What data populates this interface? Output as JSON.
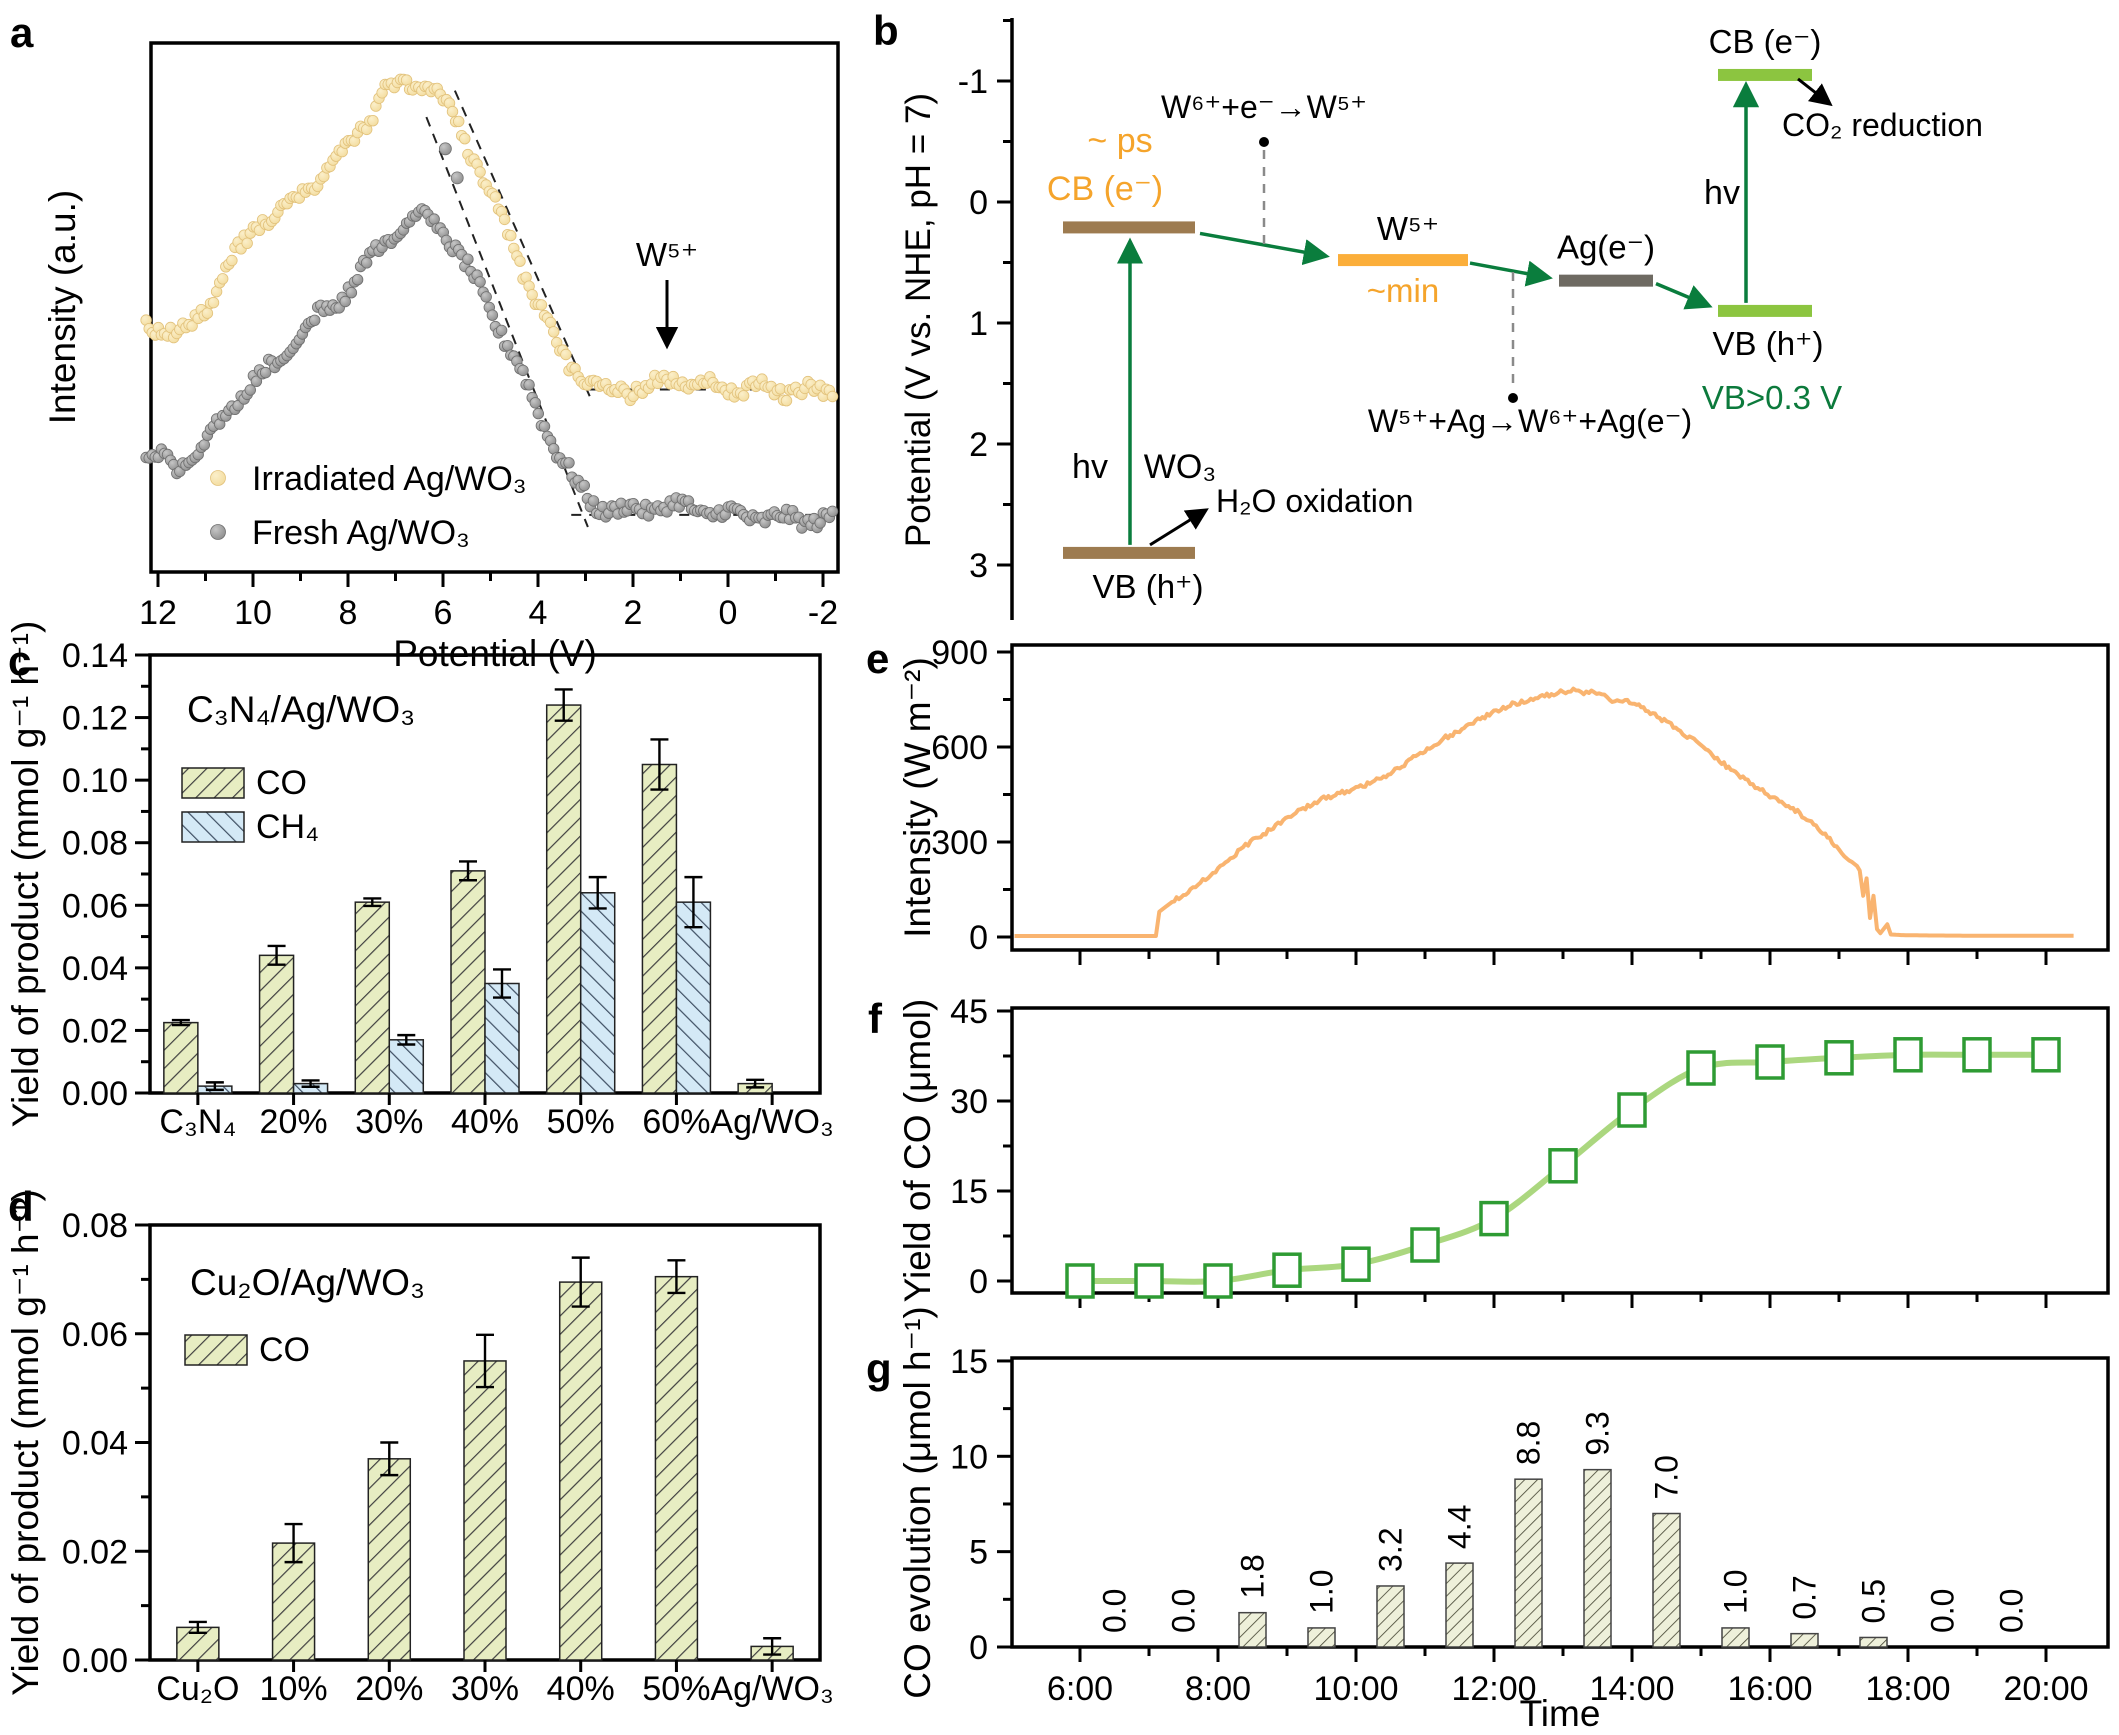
{
  "panels": {
    "a": {
      "letter": "a"
    },
    "b": {
      "letter": "b"
    },
    "c": {
      "letter": "c"
    },
    "d": {
      "letter": "d"
    },
    "e": {
      "letter": "e"
    },
    "f": {
      "letter": "f"
    },
    "g": {
      "letter": "g"
    }
  },
  "colors": {
    "yellow_dot": "#f3dc9e",
    "yellow_dot_hi": "#fbefca",
    "yellow_edge": "#e2c27c",
    "gray_dot": "#8d8d8d",
    "gray_dot_hi": "#c6c6c6",
    "gray_edge": "#6f6f6f",
    "orange_text": "#F5A42B",
    "brown_bar": "#9d7b50",
    "w5_bar": "#FBAE3A",
    "ag_bar": "#6e6a62",
    "green_bar": "#8CC540",
    "green_arrow": "#0a7d3d",
    "green_text": "#0c7a3c",
    "dash_gray": "#8a8a8a",
    "co_fill": "#e7edc2",
    "ch4_fill": "#d4e9f6",
    "hatch": "#3f3f3f",
    "ch4_hatch": "#3f4f63",
    "e_line": "#F9B470",
    "f_line": "#ABD77F",
    "f_marker": "#2E9B33",
    "g_fill": "#eef0da",
    "g_hatch": "#4a4a38"
  },
  "chart_data": [
    {
      "id": "a",
      "type": "scatter",
      "label": "a",
      "xlabel": "Potential (V)",
      "ylabel": "Intensity (a.u.)",
      "x_ticks": [
        12,
        10,
        8,
        6,
        4,
        2,
        0,
        -2
      ],
      "x_range": [
        12.3,
        -2.25
      ],
      "annotation": "W⁵⁺",
      "legend": [
        {
          "label": "Irradiated Ag/WO₃",
          "series": "irradiated"
        },
        {
          "label": "Fresh Ag/WO₃",
          "series": "fresh"
        }
      ],
      "series": [
        {
          "name": "fresh",
          "anchors": [
            [
              12.3,
              0.225
            ],
            [
              12,
              0.22
            ],
            [
              11.7,
              0.2
            ],
            [
              11.4,
              0.205
            ],
            [
              11.1,
              0.235
            ],
            [
              10.7,
              0.28
            ],
            [
              10.3,
              0.33
            ],
            [
              9.9,
              0.365
            ],
            [
              9.5,
              0.4
            ],
            [
              9.1,
              0.44
            ],
            [
              8.7,
              0.475
            ],
            [
              8.3,
              0.51
            ],
            [
              7.9,
              0.545
            ],
            [
              7.5,
              0.6
            ],
            [
              7.1,
              0.64
            ],
            [
              6.8,
              0.66
            ],
            [
              6.5,
              0.67
            ],
            [
              6.2,
              0.66
            ],
            [
              5.9,
              0.635
            ],
            [
              5.6,
              0.59
            ],
            [
              5.2,
              0.53
            ],
            [
              4.8,
              0.46
            ],
            [
              4.4,
              0.385
            ],
            [
              4.0,
              0.305
            ],
            [
              3.6,
              0.23
            ],
            [
              3.2,
              0.165
            ],
            [
              2.9,
              0.135
            ],
            [
              2.6,
              0.12
            ],
            [
              2.2,
              0.115
            ],
            [
              1.8,
              0.12
            ],
            [
              1.4,
              0.125
            ],
            [
              1.0,
              0.125
            ],
            [
              0.5,
              0.115
            ],
            [
              0.0,
              0.11
            ],
            [
              -0.6,
              0.105
            ],
            [
              -1.2,
              0.1
            ],
            [
              -2.25,
              0.1
            ]
          ],
          "outliers": [
            [
              5.95,
              0.8
            ],
            [
              5.7,
              0.745
            ]
          ]
        },
        {
          "name": "irradiated",
          "anchors": [
            [
              12.3,
              0.47
            ],
            [
              12,
              0.465
            ],
            [
              11.6,
              0.45
            ],
            [
              11.3,
              0.46
            ],
            [
              11.0,
              0.5
            ],
            [
              10.6,
              0.565
            ],
            [
              10.2,
              0.62
            ],
            [
              9.8,
              0.665
            ],
            [
              9.4,
              0.69
            ],
            [
              9.1,
              0.7
            ],
            [
              8.8,
              0.725
            ],
            [
              8.4,
              0.76
            ],
            [
              8.0,
              0.8
            ],
            [
              7.6,
              0.855
            ],
            [
              7.2,
              0.91
            ],
            [
              6.9,
              0.92
            ],
            [
              6.6,
              0.925
            ],
            [
              6.3,
              0.915
            ],
            [
              6.0,
              0.89
            ],
            [
              5.7,
              0.845
            ],
            [
              5.4,
              0.79
            ],
            [
              5.0,
              0.715
            ],
            [
              4.6,
              0.63
            ],
            [
              4.2,
              0.545
            ],
            [
              3.8,
              0.465
            ],
            [
              3.4,
              0.4
            ],
            [
              3.0,
              0.365
            ],
            [
              2.6,
              0.35
            ],
            [
              2.2,
              0.345
            ],
            [
              1.8,
              0.345
            ],
            [
              1.4,
              0.355
            ],
            [
              1.1,
              0.37
            ],
            [
              0.8,
              0.36
            ],
            [
              0.4,
              0.35
            ],
            [
              0.0,
              0.345
            ],
            [
              -0.5,
              0.345
            ],
            [
              -1.0,
              0.345
            ],
            [
              -1.5,
              0.34
            ],
            [
              -2.25,
              0.34
            ]
          ],
          "outliers": []
        }
      ],
      "fit_lines": {
        "yellow_diag": [
          [
            5.75,
            0.91
          ],
          [
            2.9,
            0.33
          ]
        ],
        "yellow_base": [
          [
            2.95,
            0.345
          ],
          [
            -2.25,
            0.345
          ]
        ],
        "gray_diag": [
          [
            6.35,
            0.86
          ],
          [
            2.95,
            0.085
          ]
        ],
        "gray_base": [
          [
            3.3,
            0.108
          ],
          [
            -2.25,
            0.108
          ]
        ]
      }
    },
    {
      "id": "b",
      "type": "diagram",
      "label": "b",
      "ylabel": "Potential (V vs. NHE, pH = 7)",
      "y_ticks": [
        -1,
        0,
        1,
        2,
        3
      ],
      "levels": [
        {
          "id": "wo3cb",
          "V": 0.21,
          "color_key": "brown_bar"
        },
        {
          "id": "wo3vb",
          "V": 2.9,
          "color_key": "brown_bar"
        },
        {
          "id": "w5",
          "V": 0.48,
          "color_key": "w5_bar"
        },
        {
          "id": "ag",
          "V": 0.65,
          "color_key": "ag_bar"
        },
        {
          "id": "gcb",
          "V": -1.05,
          "color_key": "green_bar"
        },
        {
          "id": "gvb",
          "V": 0.9,
          "color_key": "green_bar"
        }
      ],
      "texts": {
        "ps": "~ ps",
        "cb_wo3": "CB (e⁻)",
        "reaction1": "W⁶⁺+e⁻→W⁵⁺",
        "w5": "W⁵⁺",
        "min": "~min",
        "ag": "Ag(e⁻)",
        "reaction2": "W⁵⁺+Ag→W⁶⁺+Ag(e⁻)",
        "hv1": "hv",
        "wo3": "WO₃",
        "h2o": "H₂O oxidation",
        "vb_wo3": "VB (h⁺)",
        "cb_right": "CB (e⁻)",
        "hv2": "hv",
        "co2": "CO₂ reduction",
        "vb_right": "VB (h⁺)",
        "vb_threshold": "VB>0.3 V"
      }
    },
    {
      "id": "c",
      "type": "bar",
      "label": "c",
      "title": "C₃N₄/Ag/WO₃",
      "ylabel": "Yield of product (mmol g⁻¹ h⁻¹)",
      "ylim": [
        0,
        0.14
      ],
      "ytick_step": 0.02,
      "categories": [
        "C₃N₄",
        "20%",
        "30%",
        "40%",
        "50%",
        "60%",
        "Ag/WO₃"
      ],
      "series": [
        {
          "name": "CO",
          "values": [
            0.0225,
            0.044,
            0.061,
            0.071,
            0.124,
            0.105,
            0.003
          ],
          "errors": [
            0.0008,
            0.003,
            0.0012,
            0.003,
            0.005,
            0.008,
            0.0012
          ]
        },
        {
          "name": "CH₄",
          "values": [
            0.0022,
            0.003,
            0.017,
            0.035,
            0.064,
            0.061,
            null
          ],
          "errors": [
            0.0012,
            0.001,
            0.0015,
            0.0045,
            0.005,
            0.008,
            null
          ]
        }
      ]
    },
    {
      "id": "d",
      "type": "bar",
      "label": "d",
      "title": "Cu₂O/Ag/WO₃",
      "ylabel": "Yield of product (mmol g⁻¹ h⁻¹)",
      "ylim": [
        0,
        0.08
      ],
      "ytick_step": 0.02,
      "categories": [
        "Cu₂O",
        "10%",
        "20%",
        "30%",
        "40%",
        "50%",
        "Ag/WO₃"
      ],
      "series": [
        {
          "name": "CO",
          "values": [
            0.006,
            0.0215,
            0.037,
            0.055,
            0.0695,
            0.0705,
            0.0025
          ],
          "errors": [
            0.001,
            0.0035,
            0.003,
            0.0048,
            0.0045,
            0.003,
            0.0015
          ]
        }
      ]
    },
    {
      "id": "e",
      "type": "line",
      "label": "e",
      "ylabel": "Intensity (W m⁻²)",
      "y_ticks": [
        0,
        300,
        600,
        900
      ],
      "ylim": [
        0,
        900
      ],
      "x_range_hours": [
        5.0,
        20.9
      ],
      "points": [
        [
          5.05,
          3
        ],
        [
          6,
          3
        ],
        [
          7.1,
          3
        ],
        [
          7.15,
          80
        ],
        [
          7.3,
          105
        ],
        [
          7.6,
          150
        ],
        [
          8,
          215
        ],
        [
          8.4,
          290
        ],
        [
          8.8,
          345
        ],
        [
          9.2,
          400
        ],
        [
          9.5,
          435
        ],
        [
          9.8,
          455
        ],
        [
          10.1,
          475
        ],
        [
          10.4,
          505
        ],
        [
          10.7,
          545
        ],
        [
          11,
          590
        ],
        [
          11.3,
          630
        ],
        [
          11.6,
          665
        ],
        [
          11.9,
          700
        ],
        [
          12.2,
          730
        ],
        [
          12.5,
          750
        ],
        [
          12.8,
          765
        ],
        [
          13,
          775
        ],
        [
          13.15,
          780
        ],
        [
          13.3,
          770
        ],
        [
          13.45,
          775
        ],
        [
          13.6,
          760
        ],
        [
          13.75,
          745
        ],
        [
          13.9,
          750
        ],
        [
          14.1,
          730
        ],
        [
          14.3,
          705
        ],
        [
          14.5,
          680
        ],
        [
          14.7,
          650
        ],
        [
          14.9,
          620
        ],
        [
          15.1,
          585
        ],
        [
          15.3,
          550
        ],
        [
          15.5,
          520
        ],
        [
          15.75,
          480
        ],
        [
          16,
          445
        ],
        [
          16.2,
          420
        ],
        [
          16.4,
          395
        ],
        [
          16.6,
          360
        ],
        [
          16.8,
          320
        ],
        [
          17,
          280
        ],
        [
          17.15,
          240
        ],
        [
          17.3,
          210
        ],
        [
          17.35,
          130
        ],
        [
          17.4,
          185
        ],
        [
          17.45,
          60
        ],
        [
          17.5,
          130
        ],
        [
          17.55,
          25
        ],
        [
          17.6,
          12
        ],
        [
          17.7,
          40
        ],
        [
          17.75,
          8
        ],
        [
          17.9,
          6
        ],
        [
          18.2,
          5
        ],
        [
          19,
          4
        ],
        [
          20.4,
          4
        ]
      ]
    },
    {
      "id": "f",
      "type": "line",
      "label": "f",
      "ylabel": "Yield of CO (μmol)",
      "y_ticks": [
        0,
        15,
        30,
        45
      ],
      "ylim": [
        0,
        45
      ],
      "x_hours": [
        6,
        7,
        8,
        9,
        10,
        11,
        12,
        13,
        14,
        15,
        16,
        17,
        18,
        19,
        20
      ],
      "values": [
        0,
        0,
        0,
        1.8,
        2.8,
        6.0,
        10.4,
        19.2,
        28.5,
        35.5,
        36.5,
        37.2,
        37.7,
        37.7,
        37.7
      ]
    },
    {
      "id": "g",
      "type": "bar",
      "label": "g",
      "ylabel": "CO evolution (μmol h⁻¹)",
      "xlabel": "Time",
      "y_ticks": [
        0,
        5,
        10,
        15
      ],
      "ylim": [
        0,
        15
      ],
      "x_tick_hours": [
        6,
        8,
        10,
        12,
        14,
        16,
        18,
        20
      ],
      "x_tick_labels": [
        "6:00",
        "8:00",
        "10:00",
        "12:00",
        "14:00",
        "16:00",
        "18:00",
        "20:00"
      ],
      "bar_hours": [
        6.5,
        7.5,
        8.5,
        9.5,
        10.5,
        11.5,
        12.5,
        13.5,
        14.5,
        15.5,
        16.5,
        17.5,
        18.5,
        19.5
      ],
      "values": [
        0.0,
        0.0,
        1.8,
        1.0,
        3.2,
        4.4,
        8.8,
        9.3,
        7.0,
        1.0,
        0.7,
        0.5,
        0.0,
        0.0
      ],
      "value_labels": [
        "0.0",
        "0.0",
        "1.8",
        "1.0",
        "3.2",
        "4.4",
        "8.8",
        "9.3",
        "7.0",
        "1.0",
        "0.7",
        "0.5",
        "0.0",
        "0.0"
      ]
    }
  ]
}
